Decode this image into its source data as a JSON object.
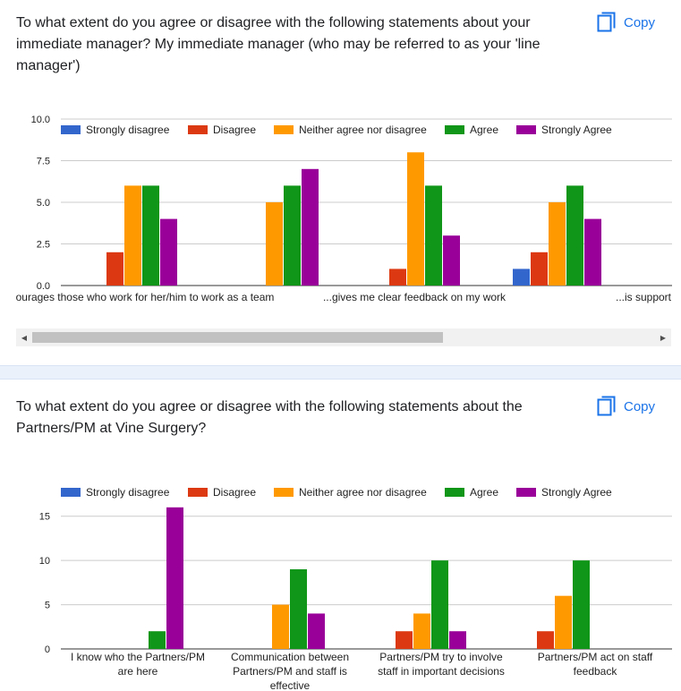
{
  "q1": {
    "title": "To what extent do you agree or disagree with the following statements about your immediate manager? My immediate manager (who may be referred to as your 'line manager')",
    "copy_label": "Copy"
  },
  "q2": {
    "title": "To what extent do you agree or disagree with the following statements about the Partners/PM at Vine Surgery?",
    "copy_label": "Copy"
  },
  "scrollbar": {
    "left_arrow": "◀",
    "right_arrow": "▶"
  },
  "colors": {
    "strongly_disagree": "#3366cc",
    "disagree": "#dc3912",
    "neither": "#ff9900",
    "agree": "#109618",
    "strongly_agree": "#990099",
    "accent": "#1a73e8"
  },
  "chart_data": [
    {
      "type": "bar",
      "title": "",
      "legend_position": "top",
      "series_names": [
        "Strongly disagree",
        "Disagree",
        "Neither agree nor disagree",
        "Agree",
        "Strongly Agree"
      ],
      "categories": [
        "...encourages those who work for her/him to work as a team",
        "...gives me clear feedback on my work",
        "...is supportive",
        ""
      ],
      "tick_labels": [
        "ourages those who work for her/him to work as a team",
        "...gives me clear feedback on my work",
        "...is support"
      ],
      "values": [
        [
          0,
          2,
          6,
          6,
          4
        ],
        [
          0,
          0,
          5,
          6,
          7
        ],
        [
          0,
          1,
          8,
          6,
          3
        ],
        [
          1,
          2,
          5,
          6,
          4
        ]
      ],
      "yticks": [
        "0.0",
        "2.5",
        "5.0",
        "7.5",
        "10.0"
      ],
      "ylim": [
        0,
        10
      ]
    },
    {
      "type": "bar",
      "title": "",
      "legend_position": "top",
      "series_names": [
        "Strongly disagree",
        "Disagree",
        "Neither agree nor disagree",
        "Agree",
        "Strongly Agree"
      ],
      "categories": [
        [
          "I know who the Partners/PM",
          "are here"
        ],
        [
          "Communication between",
          "Partners/PM and staff is",
          "effective"
        ],
        [
          "Partners/PM try to involve",
          "staff in important decisions"
        ],
        [
          "Partners/PM act on staff",
          "feedback"
        ]
      ],
      "values": [
        [
          0,
          0,
          0,
          2,
          16
        ],
        [
          0,
          0,
          5,
          9,
          4
        ],
        [
          0,
          2,
          4,
          10,
          2
        ],
        [
          0,
          2,
          6,
          10,
          0
        ]
      ],
      "yticks": [
        "0",
        "5",
        "10",
        "15"
      ],
      "ylim": [
        0,
        17.5
      ]
    }
  ]
}
